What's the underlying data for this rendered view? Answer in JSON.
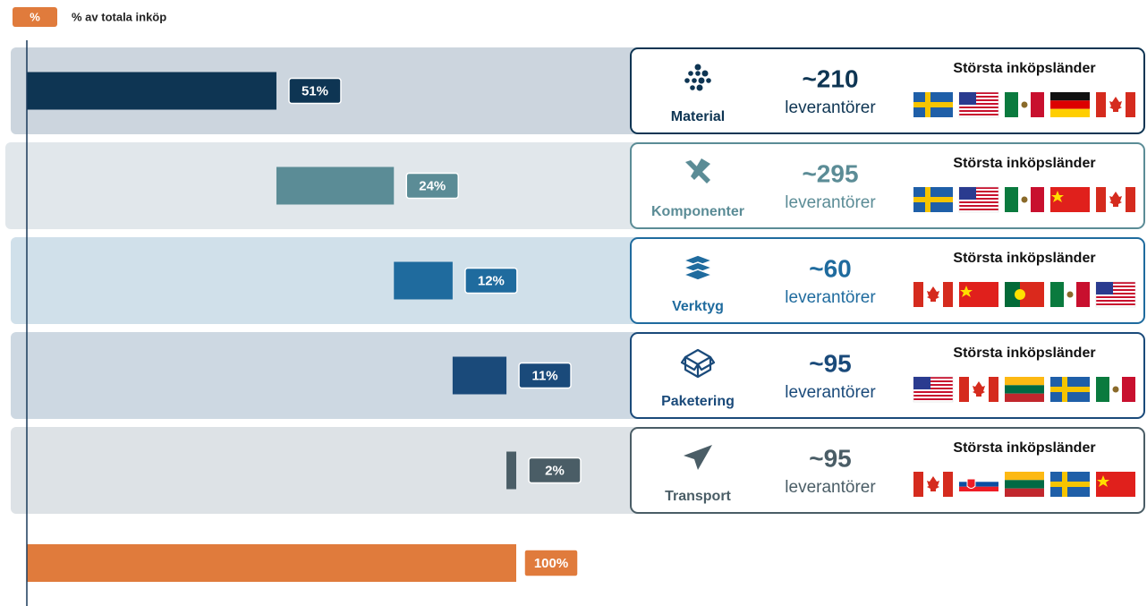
{
  "chart_data": {
    "type": "waterfall",
    "legend": {
      "symbol": "%",
      "label": "% av totala inköp",
      "color": "#e07b3c"
    },
    "categories": [
      "Material",
      "Komponenter",
      "Verktyg",
      "Paketering",
      "Transport"
    ],
    "values": [
      51,
      24,
      12,
      11,
      2
    ],
    "value_labels": [
      "51%",
      "24%",
      "12%",
      "11%",
      "2%"
    ],
    "colors": [
      "#0e3553",
      "#5b8c96",
      "#1f6b9e",
      "#1a4a7a",
      "#4a5d66"
    ],
    "row_colors": [
      "#ccd5de",
      "#e1e7eb",
      "#d0e0ea",
      "#cdd8e2",
      "#dde2e6"
    ],
    "total": {
      "value": 100,
      "label": "100%",
      "color": "#e07b3c"
    },
    "xlim": [
      0,
      100
    ],
    "suppliers": [
      "~210",
      "~295",
      "~60",
      "~95",
      "~95"
    ],
    "supplier_label": "leverantörer",
    "countries_heading": "Största inköpsländer"
  }
}
